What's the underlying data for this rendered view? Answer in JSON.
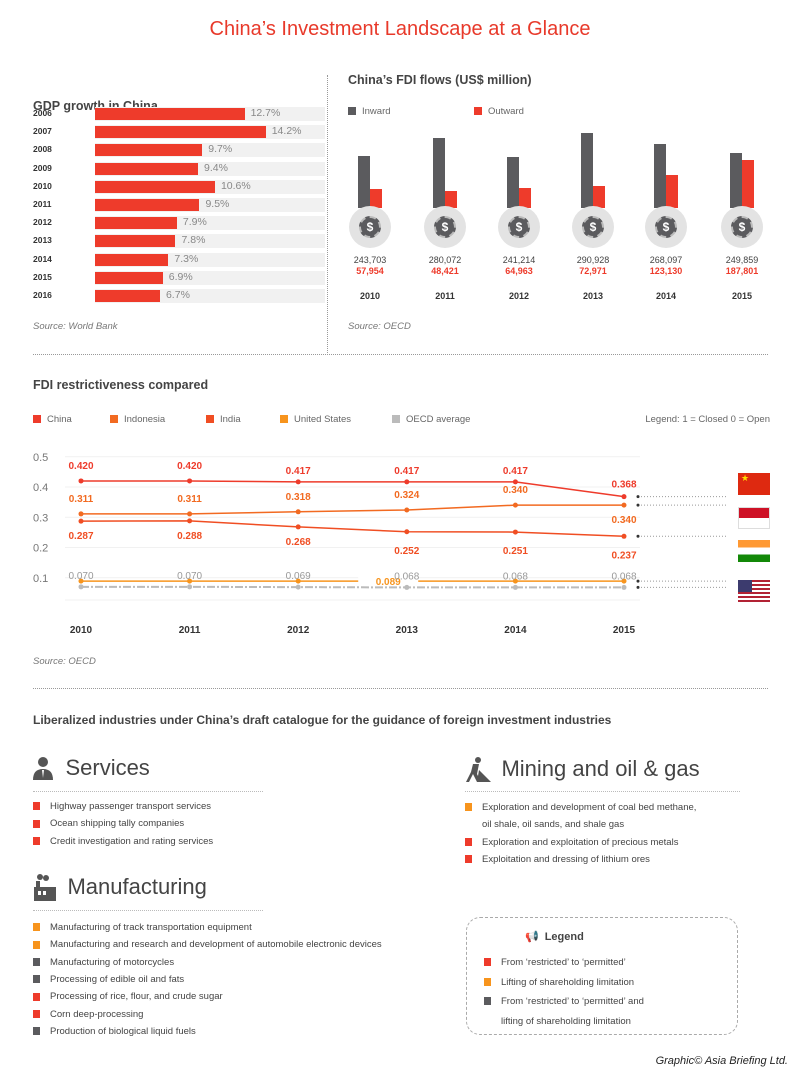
{
  "title": "China’s Investment Landscape at a Glance",
  "colors": {
    "red": "#ee3b2b",
    "orange": "#f7941d",
    "dark": "#5b5b5e",
    "gray": "#bbbbbb",
    "china": "#ee3b2b",
    "indonesia": "#f26a21",
    "india": "#f04e23",
    "united_states": "#f7941d",
    "oecd": "#bbbbbb"
  },
  "gdp": {
    "heading": "GDP growth in China",
    "source": "Source: World Bank"
  },
  "fdi_flows": {
    "heading": "China’s FDI flows (US$ million)",
    "source": "Source: OECD",
    "icon": "dollar-coin-icon"
  },
  "restrictiveness": {
    "heading": "FDI restrictiveness compared",
    "legend_note": "Legend: 1 = Closed 0 = Open",
    "source": "Source: OECD",
    "flags": [
      "china-flag",
      "indonesia-flag",
      "india-flag",
      "us-flag"
    ]
  },
  "chart_data": [
    {
      "type": "bar",
      "orientation": "horizontal",
      "title": "GDP growth in China",
      "categories": [
        "2006",
        "2007",
        "2008",
        "2009",
        "2010",
        "2011",
        "2012",
        "2013",
        "2014",
        "2015",
        "2016"
      ],
      "values": [
        12.7,
        14.2,
        9.7,
        9.4,
        10.6,
        9.5,
        7.9,
        7.8,
        7.3,
        6.9,
        6.7
      ],
      "labels": [
        "12.7%",
        "14.2%",
        "9.7%",
        "9.4%",
        "10.6%",
        "9.5%",
        "7.9%",
        "7.8%",
        "7.3%",
        "6.9%",
        "6.7%"
      ],
      "unit": "%"
    },
    {
      "type": "bar",
      "title": "China’s FDI flows (US$ million)",
      "categories": [
        "2010",
        "2011",
        "2012",
        "2013",
        "2014",
        "2015"
      ],
      "series": [
        {
          "name": "Inward",
          "color": "#5b5b5e",
          "values": [
            243703,
            280072,
            241214,
            290928,
            268097,
            249859
          ],
          "labels": [
            "243,703",
            "280,072",
            "241,214",
            "290,928",
            "268,097",
            "249,859"
          ]
        },
        {
          "name": "Outward",
          "color": "#ee3b2b",
          "values": [
            57954,
            48421,
            64963,
            72971,
            123130,
            187801
          ],
          "labels": [
            "57,954",
            "48,421",
            "64,963",
            "72,971",
            "123,130",
            "187,801"
          ]
        }
      ]
    },
    {
      "type": "line",
      "title": "FDI restrictiveness compared",
      "x": [
        "2010",
        "2011",
        "2012",
        "2013",
        "2014",
        "2015"
      ],
      "yticks": [
        "0.5",
        "0.4",
        "0.3",
        "0.2",
        "0.1"
      ],
      "ylim": [
        0,
        0.5
      ],
      "grid": true,
      "legend_position": "top",
      "series": [
        {
          "name": "China",
          "color": "#ee3b2b",
          "values": [
            0.42,
            0.42,
            0.417,
            0.417,
            0.417,
            0.368
          ],
          "labels": [
            "0.420",
            "0.420",
            "0.417",
            "0.417",
            "0.417",
            "0.368"
          ]
        },
        {
          "name": "Indonesia",
          "color": "#f26a21",
          "values": [
            0.311,
            0.311,
            0.318,
            0.324,
            0.34,
            0.34
          ],
          "labels": [
            "0.311",
            "0.311",
            "0.318",
            "0.324",
            "0.340",
            "0.340"
          ]
        },
        {
          "name": "India",
          "color": "#f04e23",
          "values": [
            0.287,
            0.288,
            0.268,
            0.252,
            0.251,
            0.237
          ],
          "labels": [
            "0.287",
            "0.288",
            "0.268",
            "0.252",
            "0.251",
            "0.237"
          ]
        },
        {
          "name": "United States",
          "color": "#f7941d",
          "values": [
            0.089,
            0.089,
            0.089,
            0.089,
            0.089,
            0.089
          ],
          "labels": [
            "0.089"
          ]
        },
        {
          "name": "OECD average",
          "color": "#bbbbbb",
          "values": [
            0.07,
            0.07,
            0.069,
            0.068,
            0.068,
            0.068
          ],
          "labels": [
            "0.070",
            "0.070",
            "0.069",
            "0.068",
            "0.068",
            "0.068"
          ]
        }
      ]
    }
  ],
  "catalogue": {
    "heading": "Liberalized industries under China’s draft catalogue for the guidance of foreign investment industries",
    "services": {
      "title": "Services",
      "icon": "person-icon",
      "items": [
        {
          "text": "Highway passenger transport services",
          "type": "red"
        },
        {
          "text": "Ocean shipping tally companies",
          "type": "red"
        },
        {
          "text": "Credit investigation and rating services",
          "type": "red"
        }
      ]
    },
    "manufacturing": {
      "title": "Manufacturing",
      "icon": "factory-icon",
      "items": [
        {
          "text": "Manufacturing of track transportation equipment",
          "type": "orange"
        },
        {
          "text": "Manufacturing and research and development of automobile electronic devices",
          "type": "orange"
        },
        {
          "text": "Manufacturing of motorcycles",
          "type": "dark"
        },
        {
          "text": "Processing of edible oil and fats",
          "type": "dark"
        },
        {
          "text": "Processing of rice, flour, and crude sugar",
          "type": "red"
        },
        {
          "text": "Corn deep-processing",
          "type": "red"
        },
        {
          "text": "Production of biological liquid fuels",
          "type": "dark"
        }
      ]
    },
    "mining": {
      "title": "Mining and oil & gas",
      "icon": "miner-icon",
      "items": [
        {
          "text": "Exploration and development of coal bed methane,",
          "text2": "oil shale, oil sands, and shale gas",
          "type": "orange"
        },
        {
          "text": "Exploration and exploitation of precious metals",
          "type": "red"
        },
        {
          "text": "Exploitation and dressing of lithium ores",
          "type": "red"
        }
      ]
    },
    "legend": {
      "title": "Legend",
      "icon": "megaphone-icon",
      "items": [
        {
          "text": "From ‘restricted’ to ‘permitted’",
          "type": "red"
        },
        {
          "text": "Lifting of shareholding limitation",
          "type": "orange"
        },
        {
          "text": "From ‘restricted’ to ‘permitted’ and",
          "text2": "lifting of shareholding limitation",
          "type": "dark"
        }
      ]
    }
  },
  "footer": "Graphic© Asia Briefing Ltd."
}
